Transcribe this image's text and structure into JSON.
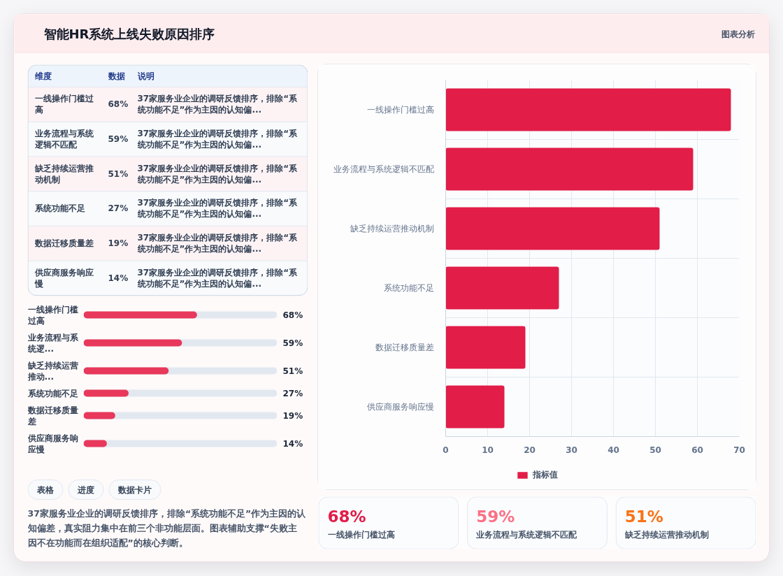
{
  "chart_data": [
    {
      "type": "other",
      "title": "智能HR系统上线失败原因排序",
      "annotations": [
        "图表分析"
      ]
    },
    {
      "type": "other",
      "categories": [
        "维度",
        "数据",
        "说明"
      ],
      "cell_labels": [
        [
          "一线操作门槛过高",
          "68%",
          "37家服务业企业的调研反馈排序，排除“系统功能不足”作为主因的认知偏..."
        ],
        [
          "业务流程与系统逻辑不匹配",
          "59%",
          "37家服务业企业的调研反馈排序，排除“系统功能不足”作为主因的认知偏..."
        ],
        [
          "缺乏持续运营推动机制",
          "51%",
          "37家服务业企业的调研反馈排序，排除“系统功能不足”作为主因的认知偏..."
        ],
        [
          "系统功能不足",
          "27%",
          "37家服务业企业的调研反馈排序，排除“系统功能不足”作为主因的认知偏..."
        ],
        [
          "数据迁移质量差",
          "19%",
          "37家服务业企业的调研反馈排序，排除“系统功能不足”作为主因的认知偏..."
        ],
        [
          "供应商服务响应慢",
          "14%",
          "37家服务业企业的调研反馈排序，排除“系统功能不足”作为主因的认知偏..."
        ]
      ]
    },
    {
      "type": "bar",
      "orientation": "horizontal",
      "categories": [
        "一线操作门槛过高",
        "业务流程与系统逻...",
        "缺乏持续运营推动...",
        "系统功能不足",
        "数据迁移质量差",
        "供应商服务响应慢"
      ],
      "values": [
        68,
        59,
        51,
        27,
        19,
        14
      ],
      "value_labels": [
        "68%",
        "59%",
        "51%",
        "27%",
        "19%",
        "14%"
      ],
      "color": "#e8385b",
      "xlim": [
        0,
        116
      ],
      "tick_labels": "y"
    },
    {
      "type": "other",
      "annotations": [
        "表格",
        "进度",
        "数据卡片",
        "37家服务业企业的调研反馈排序，排除“系统功能不足”作为主因的认知偏差，真实阻力集中在前三个非功能层面。图表辅助支撑“失败主因不在功能而在组织适配”的核心判断。"
      ]
    },
    {
      "type": "bar",
      "orientation": "horizontal",
      "categories": [
        "一线操作门槛过高",
        "业务流程与系统逻辑不匹配",
        "缺乏持续运营推动机制",
        "系统功能不足",
        "数据迁移质量差",
        "供应商服务响应慢"
      ],
      "series": [
        {
          "name": "指标值",
          "color": "#e11d48",
          "values": [
            68,
            59,
            51,
            27,
            19,
            14
          ]
        }
      ],
      "xlim": [
        0,
        70
      ],
      "xticks": [
        0,
        10,
        20,
        30,
        40,
        50,
        60,
        70
      ],
      "grid": true,
      "legend": "bottom"
    },
    {
      "type": "other",
      "categories": [
        "一线操作门槛过高",
        "业务流程与系统逻辑不匹配",
        "缺乏持续运营推动机制"
      ],
      "value_labels": [
        "68%",
        "59%",
        "51%"
      ]
    }
  ]
}
